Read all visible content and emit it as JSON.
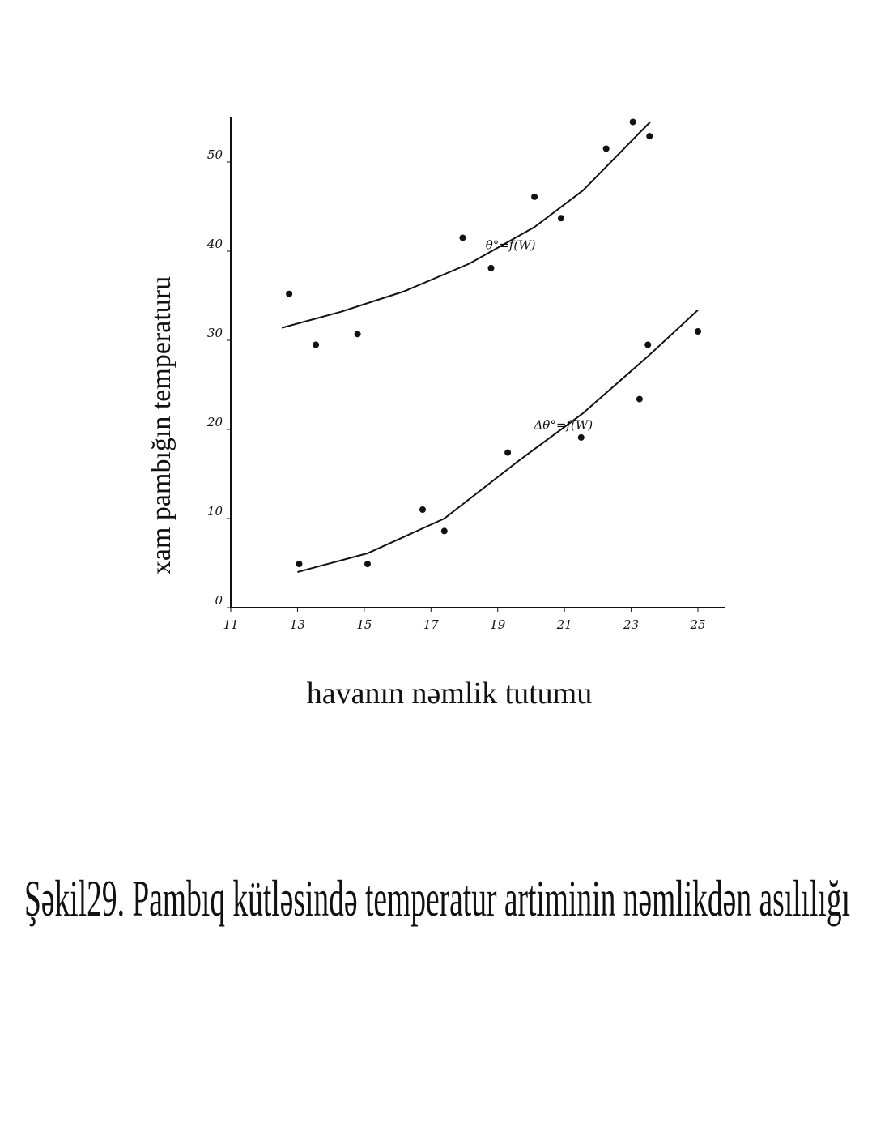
{
  "chart_data": {
    "type": "scatter",
    "caption": "Şəkil29. Pambıq kütləsində temperatur artiminin nəmlikdən asılılığı",
    "x_label": "havanın nəmlik tutumu",
    "y_label": "xam pambığın temperaturu",
    "xlim": [
      11,
      25.8
    ],
    "ylim": [
      0,
      55
    ],
    "xticks": [
      11,
      13,
      15,
      17,
      19,
      21,
      23,
      25
    ],
    "yticks": [
      0,
      10,
      20,
      30,
      40,
      50
    ],
    "color": "#111111",
    "series": [
      {
        "name": "θ°=f(W)",
        "x": [
          12.75,
          13.55,
          14.8,
          17.95,
          18.8,
          20.1,
          20.9,
          22.25,
          23.05,
          23.55
        ],
        "values": [
          35.2,
          29.5,
          30.7,
          41.5,
          38.1,
          46.1,
          43.7,
          51.5,
          54.5,
          52.9
        ],
        "fit": {
          "x": [
            12.53,
            14.3,
            16.2,
            18.15,
            20.1,
            21.55,
            23.57
          ],
          "values": [
            31.4,
            33.2,
            35.5,
            38.6,
            42.7,
            46.8,
            54.5
          ]
        }
      },
      {
        "name": "Δθ°=f(W)",
        "x": [
          13.05,
          15.1,
          16.75,
          17.4,
          19.3,
          21.5,
          23.25,
          23.5,
          25.0
        ],
        "values": [
          4.9,
          4.9,
          11.0,
          8.6,
          17.4,
          19.1,
          23.4,
          29.5,
          31.0
        ],
        "fit": {
          "x": [
            13.0,
            15.1,
            17.4,
            19.6,
            21.55,
            23.5,
            25.0
          ],
          "values": [
            4.0,
            6.1,
            10.0,
            16.4,
            21.8,
            28.2,
            33.4
          ]
        }
      }
    ]
  }
}
